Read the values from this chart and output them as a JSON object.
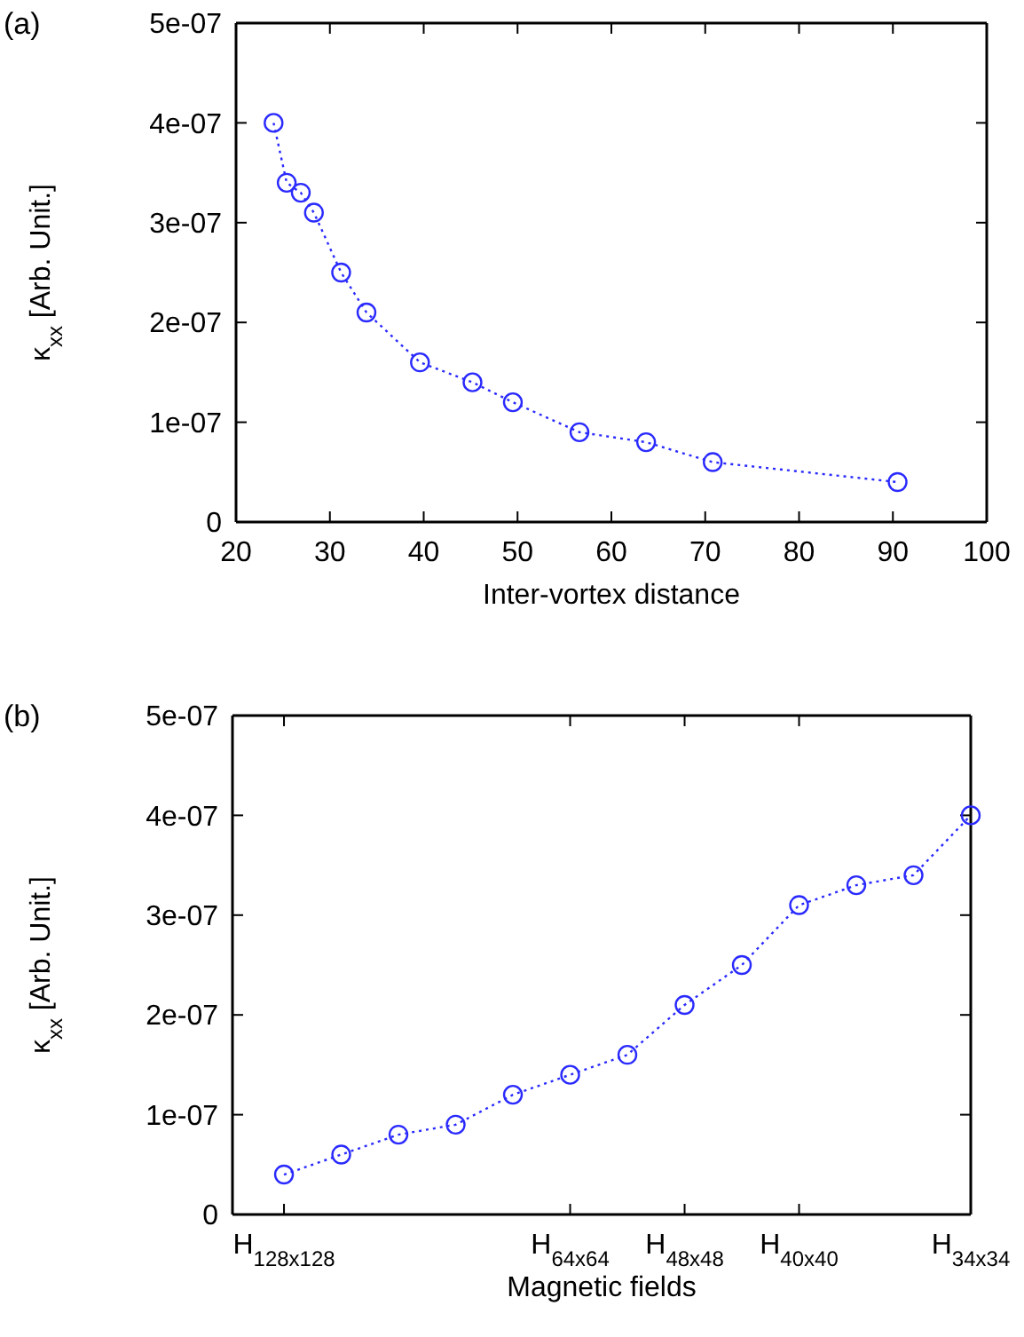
{
  "chart_data": [
    {
      "type": "line",
      "title": "(a)",
      "xlabel": "Inter-vortex distance",
      "ylabel": "κ$_{xx}$ [Arb. Unit.]",
      "x": [
        24,
        25.4,
        26.9,
        28.3,
        31.2,
        33.9,
        39.6,
        45.2,
        49.5,
        56.6,
        63.7,
        70.8,
        90.5
      ],
      "series": [
        {
          "color": "#2a2aff",
          "values": [
            4e-07,
            3.4e-07,
            3.3e-07,
            3.1e-07,
            2.5e-07,
            2.1e-07,
            1.6e-07,
            1.4e-07,
            1.2e-07,
            9e-08,
            8e-08,
            6e-08,
            4e-08
          ]
        }
      ],
      "xlim": [
        20,
        100
      ],
      "xticks": [
        20,
        30,
        40,
        50,
        60,
        70,
        80,
        90,
        100
      ],
      "ylim": [
        0,
        5e-07
      ],
      "yticks": [
        0,
        {
          "value": 1e-07,
          "label": "1e-07"
        },
        {
          "value": 2e-07,
          "label": "2e-07"
        },
        {
          "value": 3e-07,
          "label": "3e-07"
        },
        {
          "value": 4e-07,
          "label": "4e-07"
        },
        {
          "value": 5e-07,
          "label": "5e-07"
        }
      ],
      "grid": false,
      "marker": "circle",
      "line_style": "dotted"
    },
    {
      "type": "line",
      "title": "(b)",
      "xlabel": "Magnetic fields",
      "ylabel": "κ$_{xx}$ [Arb. Unit.]",
      "categories": [
        "H$_{128x128}$",
        null,
        null,
        null,
        null,
        "H$_{64x64}$",
        null,
        "H$_{48x48}$",
        null,
        "H$_{40x40}$",
        null,
        null,
        "H$_{34x34}$"
      ],
      "series": [
        {
          "color": "#2a2aff",
          "values": [
            4e-08,
            6e-08,
            8e-08,
            9e-08,
            1.2e-07,
            1.4e-07,
            1.6e-07,
            2.1e-07,
            2.5e-07,
            3.1e-07,
            3.3e-07,
            3.4e-07,
            4e-07
          ]
        }
      ],
      "ylim": [
        0,
        5e-07
      ],
      "yticks": [
        0,
        {
          "value": 1e-07,
          "label": "1e-07"
        },
        {
          "value": 2e-07,
          "label": "2e-07"
        },
        {
          "value": 3e-07,
          "label": "3e-07"
        },
        {
          "value": 4e-07,
          "label": "4e-07"
        },
        {
          "value": 5e-07,
          "label": "5e-07"
        }
      ],
      "grid": false,
      "marker": "circle",
      "line_style": "dotted"
    }
  ]
}
